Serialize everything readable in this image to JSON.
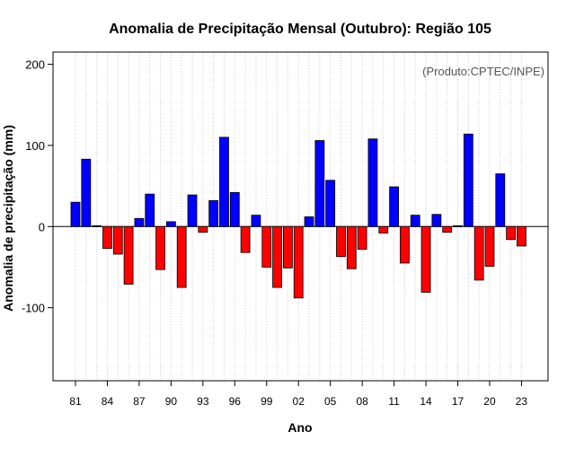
{
  "chart_data": {
    "type": "bar",
    "title": "Anomalia de Precipitação Mensal (Outubro): Região 105",
    "xlabel": "Ano",
    "ylabel": "Anomalia de precipitação (mm)",
    "annotation": "(Produto:CPTEC/INPE)",
    "ylim": [
      -190,
      215
    ],
    "yticks": [
      -100,
      0,
      100,
      200
    ],
    "grid": "vertical dotted",
    "positive_color": "#0000ff",
    "negative_color": "#ff0000",
    "categories": [
      "81",
      "82",
      "83",
      "84",
      "85",
      "86",
      "87",
      "88",
      "89",
      "90",
      "91",
      "92",
      "93",
      "94",
      "95",
      "96",
      "97",
      "98",
      "99",
      "00",
      "01",
      "02",
      "03",
      "04",
      "05",
      "06",
      "07",
      "08",
      "09",
      "10",
      "11",
      "12",
      "13",
      "14",
      "15",
      "16",
      "17",
      "18",
      "19",
      "20",
      "21",
      "22",
      "23"
    ],
    "tick_labels": [
      "81",
      "84",
      "87",
      "90",
      "93",
      "96",
      "99",
      "02",
      "05",
      "08",
      "11",
      "14",
      "17",
      "20",
      "23"
    ],
    "values": [
      30,
      83,
      1,
      -27,
      -34,
      -71,
      10,
      40,
      -53,
      6,
      -75,
      39,
      -7,
      32,
      110,
      42,
      -32,
      14,
      -50,
      -75,
      -51,
      -88,
      12,
      106,
      57,
      -37,
      -52,
      -28,
      108,
      -8,
      49,
      -45,
      14,
      -81,
      15,
      -7,
      1,
      114,
      -66,
      -49,
      65,
      -16,
      -24
    ]
  }
}
